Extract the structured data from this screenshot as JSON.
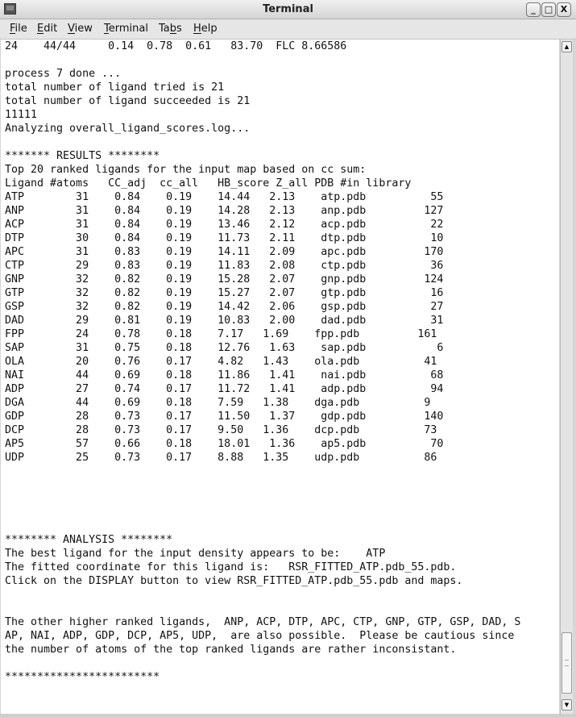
{
  "window": {
    "title": "Terminal",
    "icon": "terminal-icon",
    "controls": [
      "minimize",
      "maximize",
      "close"
    ]
  },
  "menu": [
    {
      "label": "File",
      "mnemonic": "F",
      "rest": "ile"
    },
    {
      "label": "Edit",
      "mnemonic": "E",
      "rest": "dit"
    },
    {
      "label": "View",
      "mnemonic": "V",
      "rest": "iew"
    },
    {
      "label": "Terminal",
      "mnemonic": "T",
      "rest": "erminal"
    },
    {
      "label": "Tabs",
      "pre": "Ta",
      "mnemonic": "b",
      "rest": "s"
    },
    {
      "label": "Help",
      "mnemonic": "H",
      "rest": "elp"
    }
  ],
  "terminal": {
    "lines": [
      "24    44/44     0.14  0.78  0.61   83.70  FLC 8.66586",
      "",
      "process 7 done ...",
      "total number of ligand tried is 21",
      "total number of ligand succeeded is 21",
      "11111",
      "Analyzing overall_ligand_scores.log...",
      "",
      "******* RESULTS ********",
      "Top 20 ranked ligands for the input map based on cc sum:",
      "Ligand #atoms   CC_adj  cc_all   HB_score Z_all PDB #in library",
      "ATP        31    0.84    0.19    14.44   2.13    atp.pdb          55",
      "ANP        31    0.84    0.19    14.28   2.13    anp.pdb         127",
      "ACP        31    0.84    0.19    13.46   2.12    acp.pdb          22",
      "DTP        30    0.84    0.19    11.73   2.11    dtp.pdb          10",
      "APC        31    0.83    0.19    14.11   2.09    apc.pdb         170",
      "CTP        29    0.83    0.19    11.83   2.08    ctp.pdb          36",
      "GNP        32    0.82    0.19    15.28   2.07    gnp.pdb         124",
      "GTP        32    0.82    0.19    15.27   2.07    gtp.pdb          16",
      "GSP        32    0.82    0.19    14.42   2.06    gsp.pdb          27",
      "DAD        29    0.81    0.19    10.83   2.00    dad.pdb          31",
      "FPP        24    0.78    0.18    7.17   1.69    fpp.pdb         161",
      "SAP        31    0.75    0.18    12.76   1.63    sap.pdb           6",
      "OLA        20    0.76    0.17    4.82   1.43    ola.pdb          41",
      "NAI        44    0.69    0.18    11.86   1.41    nai.pdb          68",
      "ADP        27    0.74    0.17    11.72   1.41    adp.pdb          94",
      "DGA        44    0.69    0.18    7.59   1.38    dga.pdb          9",
      "GDP        28    0.73    0.17    11.50   1.37    gdp.pdb         140",
      "DCP        28    0.73    0.17    9.50   1.36    dcp.pdb          73",
      "AP5        57    0.66    0.18    18.01   1.36    ap5.pdb          70",
      "UDP        25    0.73    0.17    8.88   1.35    udp.pdb          86",
      "",
      "",
      "",
      "",
      "",
      "******** ANALYSIS ********",
      "The best ligand for the input density appears to be:    ATP",
      "The fitted coordinate for this ligand is:   RSR_FITTED_ATP.pdb_55.pdb.",
      "Click on the DISPLAY button to view RSR_FITTED_ATP.pdb_55.pdb and maps.",
      "",
      "",
      "The other higher ranked ligands,  ANP, ACP, DTP, APC, CTP, GNP, GTP, GSP, DAD, S",
      "AP, NAI, ADP, GDP, DCP, AP5, UDP,  are also possible.  Please be cautious since",
      "the number of atoms of the top ranked ligands are rather inconsistant.",
      "",
      "************************"
    ]
  },
  "scrollbar": {
    "position_fraction": 0.97
  }
}
